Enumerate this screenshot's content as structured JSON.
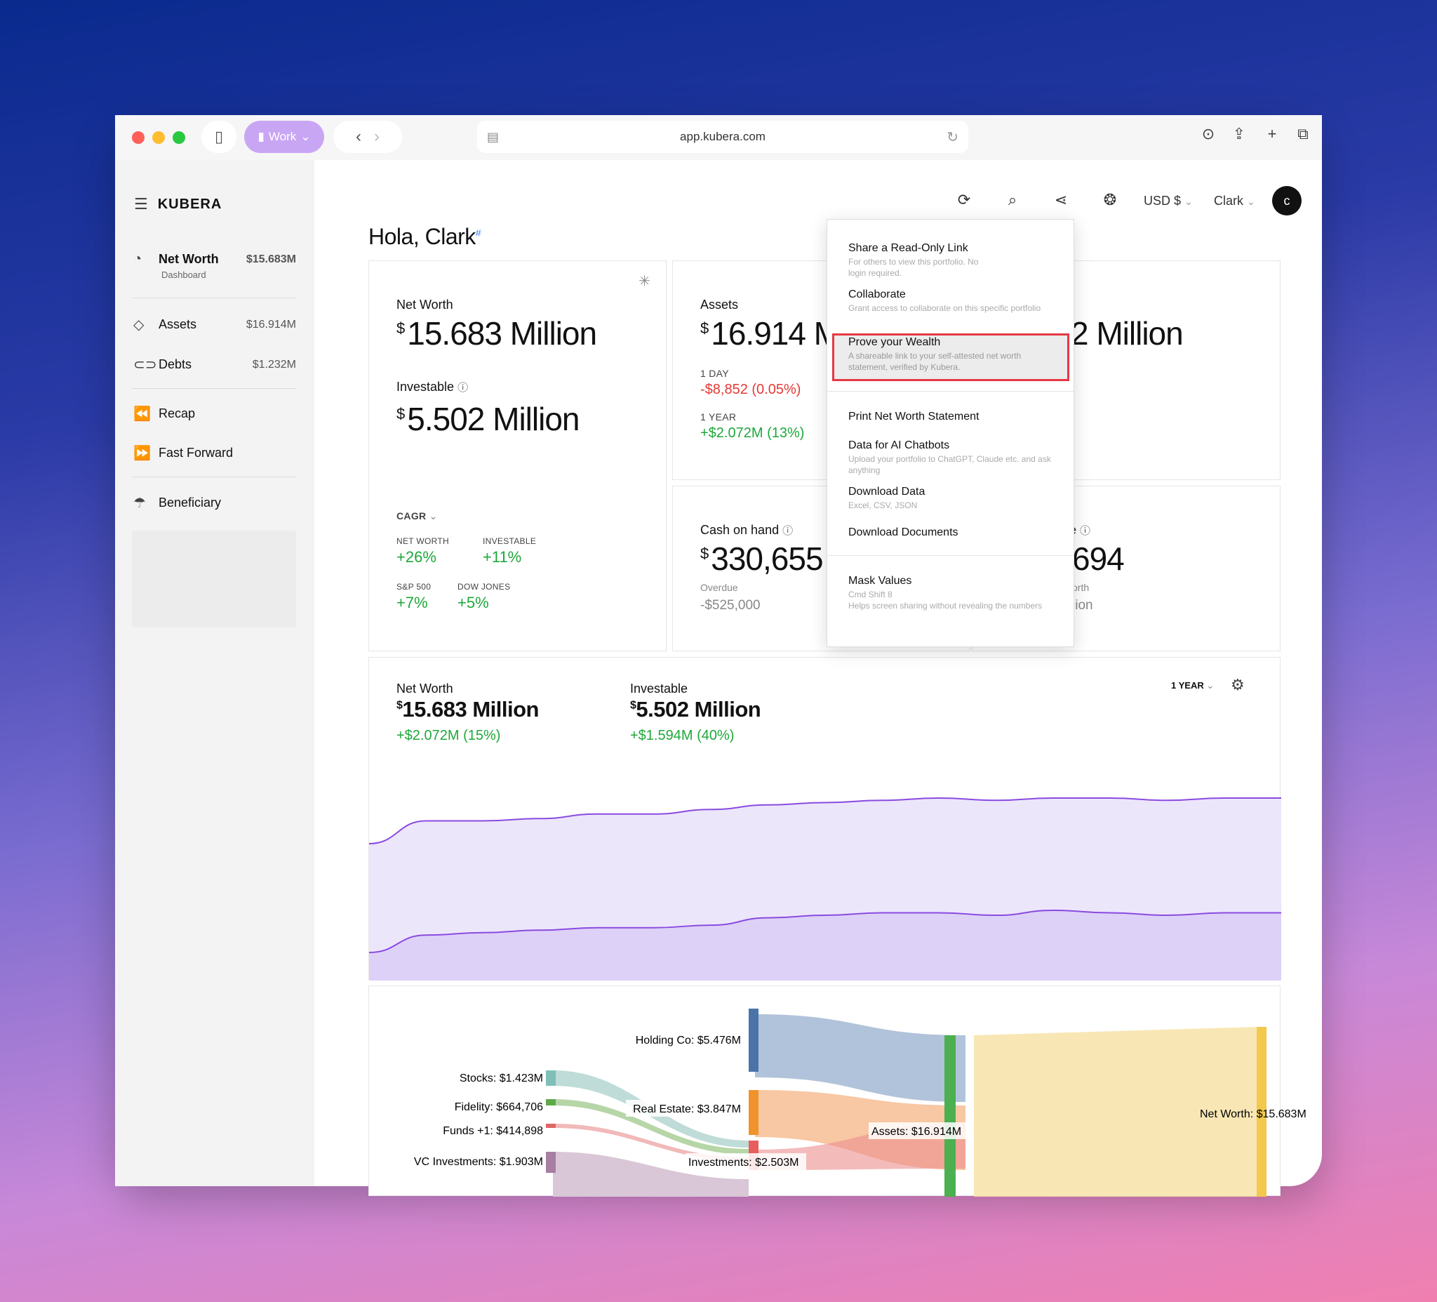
{
  "browser": {
    "profile": "Work",
    "url": "app.kubera.com"
  },
  "sidebar": {
    "brand": "KUBERA",
    "net_worth": {
      "label": "Net Worth",
      "sub": "Dashboard",
      "amount": "$15.683M"
    },
    "items": [
      {
        "label": "Assets",
        "amount": "$16.914M",
        "icon": "diamond-icon"
      },
      {
        "label": "Debts",
        "amount": "$1.232M",
        "icon": "rings-icon"
      },
      {
        "label": "Recap",
        "icon": "rewind-icon"
      },
      {
        "label": "Fast Forward",
        "icon": "fast-forward-icon"
      },
      {
        "label": "Beneficiary",
        "icon": "umbrella-icon"
      }
    ]
  },
  "header": {
    "greeting": "Hola, Clark",
    "currency": "USD $",
    "user": "Clark",
    "avatar_letter": "c"
  },
  "net_worth_card": {
    "label": "Net Worth",
    "currency_symbol": "$",
    "value": "15.683 Million",
    "investable_label": "Investable",
    "investable_value": "5.502 Million",
    "cagr_label": "CAGR",
    "cagr": [
      {
        "label": "NET WORTH",
        "value": "+26%"
      },
      {
        "label": "INVESTABLE",
        "value": "+11%"
      },
      {
        "label": "S&P 500",
        "value": "+7%"
      },
      {
        "label": "DOW JONES",
        "value": "+5%"
      }
    ]
  },
  "assets_card": {
    "label": "Assets",
    "value": "16.914 M",
    "day_label": "1 DAY",
    "day_change": "-$8,852 (0.05%)",
    "year_label": "1 YEAR",
    "year_change": "+$2.072M (13%)"
  },
  "debts_card": {
    "value_partial": "2 Million"
  },
  "cash_card": {
    "label": "Cash on hand",
    "value": "330,655",
    "overdue_label": "Overdue",
    "overdue_value": "-$525,000"
  },
  "fourth_card": {
    "label_partial": "e",
    "value_partial": "694",
    "sub_label_partial": "orth",
    "sub_value_partial": "lion"
  },
  "menu": {
    "items": [
      {
        "title": "Share a Read-Only Link",
        "desc": "For others to view this portfolio. No login required."
      },
      {
        "title": "Collaborate",
        "desc": "Grant access to collaborate on this specific portfolio"
      },
      {
        "title": "Prove your Wealth",
        "desc": "A shareable link to your self-attested net worth statement, verified by Kubera."
      },
      {
        "title": "Print Net Worth Statement",
        "desc": ""
      },
      {
        "title": "Data for AI Chatbots",
        "desc": "Upload your portfolio to ChatGPT, Claude etc. and ask anything"
      },
      {
        "title": "Download Data",
        "desc": "Excel, CSV, JSON"
      },
      {
        "title": "Download Documents",
        "desc": ""
      },
      {
        "title": "Mask Values",
        "desc": "Cmd Shift 8",
        "desc2": "Helps screen sharing without revealing the numbers"
      }
    ]
  },
  "chart_card": {
    "nw_label": "Net Worth",
    "nw_value": "15.683 Million",
    "nw_change": "+$2.072M (15%)",
    "inv_label": "Investable",
    "inv_value": "5.502 Million",
    "inv_change": "+$1.594M (40%)",
    "period": "1 YEAR",
    "colors": {
      "line": "#8a4be0",
      "fill_top": "#ece6fb",
      "fill_bottom": "#ddd1f7"
    }
  },
  "chart_data": {
    "type": "area",
    "xlabel": "",
    "ylabel": "",
    "series": [
      {
        "name": "Net Worth",
        "values": [
          13.6,
          14.6,
          14.6,
          14.7,
          14.9,
          14.9,
          15.1,
          15.3,
          15.4,
          15.5,
          15.6,
          15.5,
          15.6,
          15.6,
          15.5,
          15.6,
          15.6
        ]
      },
      {
        "name": "Investable",
        "values": [
          3.9,
          4.6,
          4.7,
          4.8,
          4.9,
          4.9,
          5.0,
          5.3,
          5.4,
          5.5,
          5.5,
          5.4,
          5.6,
          5.5,
          5.4,
          5.5,
          5.5
        ]
      }
    ]
  },
  "sankey": {
    "labels": [
      "Holding Co: $5.476M",
      "Stocks: $1.423M",
      "Fidelity: $664,706",
      "Funds +1: $414,898",
      "VC Investments: $1.903M",
      "Real Estate: $3.847M",
      "Investments: $2.503M",
      "Assets: $16.914M",
      "Net Worth: $15.683M"
    ]
  }
}
